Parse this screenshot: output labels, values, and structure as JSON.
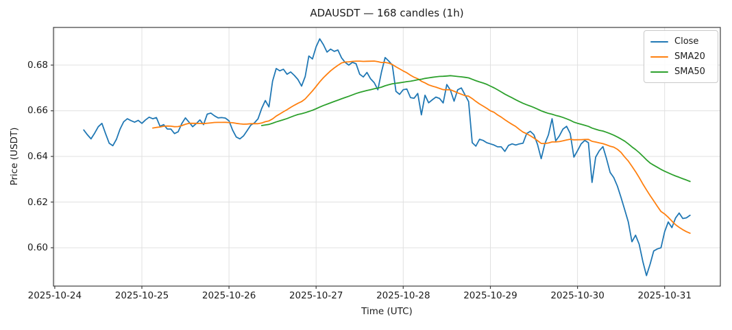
{
  "chart_data": {
    "type": "line",
    "title": "ADAUSDT — 168 candles (1h)",
    "xlabel": "Time (UTC)",
    "ylabel": "Price (USDT)",
    "symbol": "ADAUSDT",
    "interval": "1h",
    "candle_count": 168,
    "time_start_utc": "2025-10-24 08:00",
    "time_end_utc": "2025-10-31 07:00",
    "grid": true,
    "legend_position": "upper right",
    "x_tick_labels": [
      "2025-10-24",
      "2025-10-25",
      "2025-10-26",
      "2025-10-27",
      "2025-10-28",
      "2025-10-29",
      "2025-10-30",
      "2025-10-31"
    ],
    "y_tick_labels": [
      "0.60",
      "0.62",
      "0.64",
      "0.66",
      "0.68"
    ],
    "y_ticks": [
      0.6,
      0.62,
      0.64,
      0.66,
      0.68
    ],
    "ylim": [
      0.5832,
      0.6965
    ],
    "series": [
      {
        "name": "Close",
        "color": "#1f77b4",
        "kind": "raw",
        "values": [
          0.6516,
          0.6495,
          0.6477,
          0.6502,
          0.653,
          0.6545,
          0.65,
          0.6458,
          0.6447,
          0.6475,
          0.652,
          0.6552,
          0.6565,
          0.6557,
          0.655,
          0.6558,
          0.6545,
          0.656,
          0.6572,
          0.6565,
          0.657,
          0.6532,
          0.6539,
          0.652,
          0.652,
          0.65,
          0.6508,
          0.6544,
          0.6569,
          0.655,
          0.653,
          0.6544,
          0.656,
          0.6539,
          0.6585,
          0.659,
          0.6578,
          0.6569,
          0.657,
          0.6568,
          0.6556,
          0.6515,
          0.6485,
          0.6477,
          0.649,
          0.6513,
          0.6537,
          0.6547,
          0.6565,
          0.661,
          0.6645,
          0.6617,
          0.673,
          0.6785,
          0.6775,
          0.6782,
          0.676,
          0.677,
          0.6755,
          0.6737,
          0.6708,
          0.675,
          0.684,
          0.6827,
          0.688,
          0.6915,
          0.689,
          0.6857,
          0.687,
          0.686,
          0.6866,
          0.6832,
          0.6812,
          0.68,
          0.6812,
          0.6806,
          0.676,
          0.6748,
          0.6768,
          0.674,
          0.6723,
          0.6692,
          0.677,
          0.6833,
          0.6818,
          0.68,
          0.6685,
          0.6672,
          0.6692,
          0.6695,
          0.6658,
          0.6655,
          0.6676,
          0.6582,
          0.6668,
          0.6635,
          0.6648,
          0.666,
          0.6654,
          0.6634,
          0.6715,
          0.669,
          0.6642,
          0.6692,
          0.67,
          0.667,
          0.664,
          0.646,
          0.6445,
          0.6475,
          0.647,
          0.646,
          0.6455,
          0.645,
          0.6442,
          0.6442,
          0.6422,
          0.6448,
          0.6455,
          0.645,
          0.6455,
          0.6458,
          0.65,
          0.651,
          0.6495,
          0.6452,
          0.639,
          0.6455,
          0.6495,
          0.6565,
          0.6468,
          0.649,
          0.652,
          0.6532,
          0.65,
          0.6397,
          0.6425,
          0.6455,
          0.647,
          0.646,
          0.6286,
          0.6397,
          0.6425,
          0.6443,
          0.639,
          0.633,
          0.6307,
          0.627,
          0.622,
          0.6167,
          0.6113,
          0.6026,
          0.6055,
          0.6015,
          0.594,
          0.5878,
          0.5928,
          0.5986,
          0.5995,
          0.6,
          0.607,
          0.6113,
          0.6088,
          0.613,
          0.6152,
          0.6128,
          0.6131,
          0.6142
        ]
      },
      {
        "name": "SMA20",
        "color": "#ff7f0e",
        "kind": "sma_of_close",
        "window": 20
      },
      {
        "name": "SMA50",
        "color": "#2ca02c",
        "kind": "sma_of_close",
        "window": 50
      }
    ],
    "style": {
      "grid_color": "#e0e0e0",
      "spine_color": "#3c3c3c",
      "background": "#ffffff"
    }
  }
}
